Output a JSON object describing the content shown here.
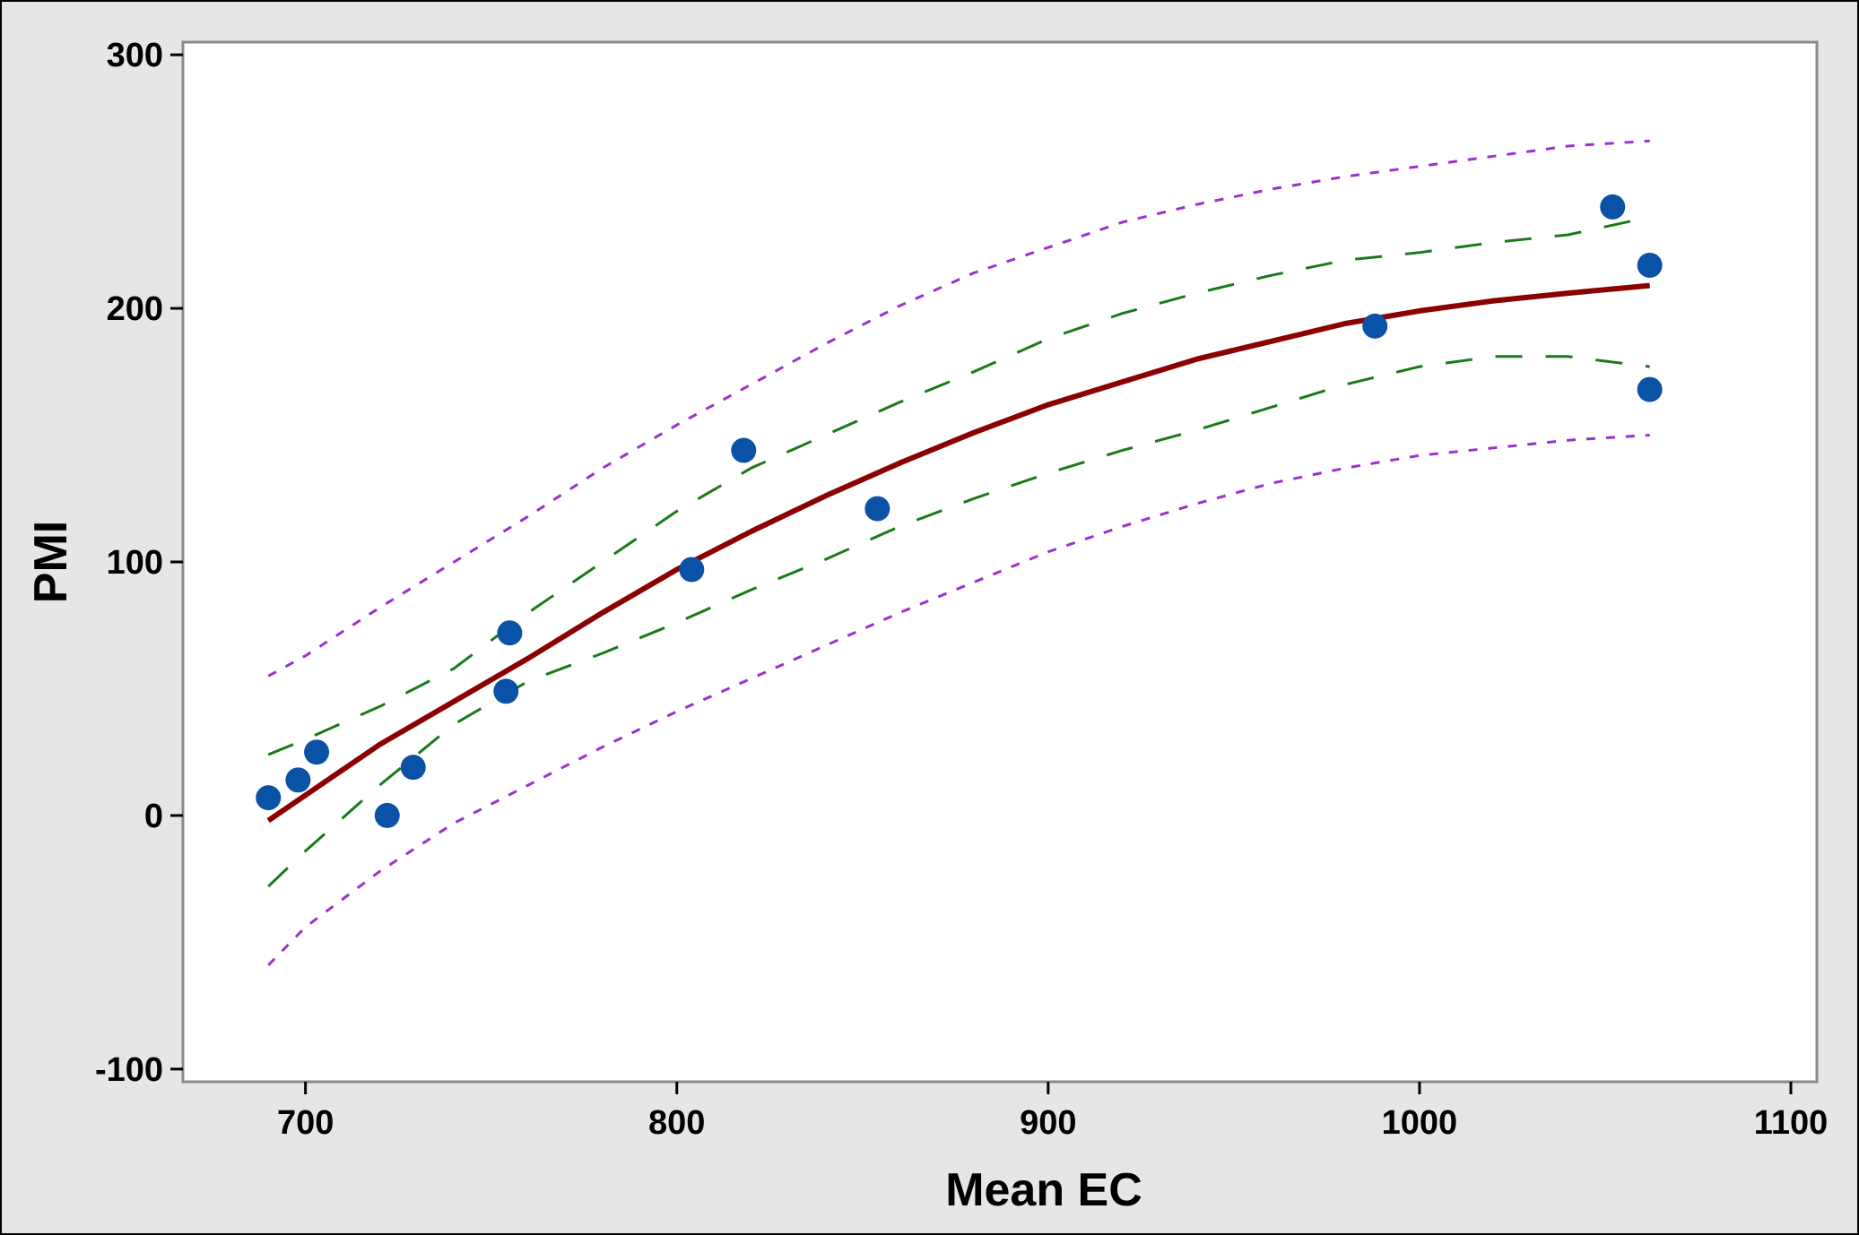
{
  "chart_data": {
    "type": "scatter",
    "xlabel": "Mean EC",
    "ylabel": "PMI",
    "xlim": [
      667,
      1107
    ],
    "ylim": [
      -105,
      305
    ],
    "x_ticks": [
      "700",
      "800",
      "900",
      "1000",
      "1100"
    ],
    "x_tick_values": [
      700,
      800,
      900,
      1000,
      1100
    ],
    "y_ticks": [
      "300",
      "200",
      "100",
      "0",
      "-100"
    ],
    "y_tick_values": [
      300,
      200,
      100,
      0,
      -100
    ],
    "grid": false,
    "colors": {
      "points": "#0a52a6",
      "fit": "#8b0000",
      "confidence_interval": "#1a7a1a",
      "prediction_interval": "#9b30d0",
      "plot_background": "#ffffff",
      "frame_background": "#e6e6e6"
    },
    "series": [
      {
        "type": "scatter",
        "points": [
          [
            690,
            7
          ],
          [
            698,
            14
          ],
          [
            703,
            25
          ],
          [
            722,
            0
          ],
          [
            729,
            19
          ],
          [
            754,
            49
          ],
          [
            755,
            72
          ],
          [
            804,
            97
          ],
          [
            818,
            144
          ],
          [
            854,
            121
          ],
          [
            988,
            193
          ],
          [
            1052,
            240
          ],
          [
            1062,
            217
          ],
          [
            1062,
            168
          ]
        ]
      },
      {
        "type": "line",
        "role": "fit",
        "style": "solid",
        "x": [
          690,
          700,
          720,
          740,
          760,
          780,
          800,
          820,
          840,
          860,
          880,
          900,
          920,
          940,
          960,
          980,
          1000,
          1020,
          1040,
          1062
        ],
        "y": [
          -2,
          8,
          28,
          45,
          62,
          80,
          97,
          112,
          126,
          139,
          151,
          162,
          171,
          180,
          187,
          194,
          199,
          203,
          206,
          209
        ]
      },
      {
        "type": "line",
        "role": "confidence-upper",
        "style": "dashed",
        "x": [
          690,
          700,
          720,
          740,
          760,
          780,
          800,
          820,
          840,
          860,
          880,
          900,
          920,
          940,
          960,
          980,
          1000,
          1020,
          1040,
          1062
        ],
        "y": [
          24,
          30,
          43,
          58,
          80,
          100,
          120,
          137,
          150,
          163,
          175,
          188,
          198,
          206,
          213,
          219,
          222,
          226,
          229,
          236
        ]
      },
      {
        "type": "line",
        "role": "confidence-lower",
        "style": "dashed",
        "x": [
          690,
          700,
          720,
          740,
          760,
          780,
          800,
          820,
          840,
          860,
          880,
          900,
          920,
          940,
          960,
          980,
          1000,
          1020,
          1040,
          1062
        ],
        "y": [
          -28,
          -14,
          12,
          36,
          53,
          64,
          76,
          89,
          101,
          114,
          125,
          135,
          144,
          152,
          161,
          170,
          177,
          181,
          181,
          177
        ]
      },
      {
        "type": "line",
        "role": "prediction-upper",
        "style": "dotted",
        "x": [
          690,
          700,
          720,
          740,
          760,
          780,
          800,
          820,
          840,
          860,
          880,
          900,
          920,
          940,
          960,
          980,
          1000,
          1020,
          1040,
          1062
        ],
        "y": [
          55,
          63,
          82,
          100,
          118,
          137,
          154,
          170,
          186,
          201,
          214,
          224,
          234,
          241,
          247,
          252,
          256,
          260,
          264,
          266
        ]
      },
      {
        "type": "line",
        "role": "prediction-lower",
        "style": "dotted",
        "x": [
          690,
          700,
          720,
          740,
          760,
          780,
          800,
          820,
          840,
          860,
          880,
          900,
          920,
          940,
          960,
          980,
          1000,
          1020,
          1040,
          1062
        ],
        "y": [
          -59,
          -44,
          -22,
          -3,
          12,
          27,
          41,
          54,
          67,
          80,
          92,
          104,
          114,
          123,
          131,
          137,
          142,
          145,
          148,
          150
        ]
      }
    ]
  }
}
